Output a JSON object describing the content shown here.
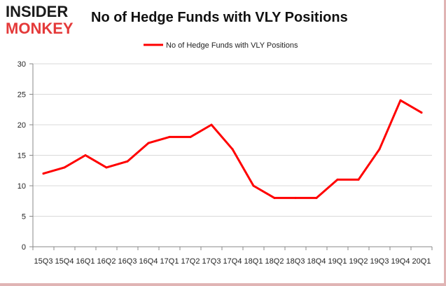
{
  "logo": {
    "line1": "INSIDER",
    "line2": "MONKEY"
  },
  "colors": {
    "series": "#ff0000",
    "grid": "#d9d9d9",
    "axis": "#888888",
    "logo_accent": "#e43a3a"
  },
  "chart_data": {
    "type": "line",
    "title": "No of Hedge Funds with VLY Positions",
    "xlabel": "",
    "ylabel": "",
    "categories": [
      "15Q3",
      "15Q4",
      "16Q1",
      "16Q2",
      "16Q3",
      "16Q4",
      "17Q1",
      "17Q2",
      "17Q3",
      "17Q4",
      "18Q1",
      "18Q2",
      "18Q3",
      "18Q4",
      "19Q1",
      "19Q2",
      "19Q3",
      "19Q4",
      "20Q1"
    ],
    "series": [
      {
        "name": "No of Hedge Funds with VLY Positions",
        "values": [
          12,
          13,
          15,
          13,
          14,
          17,
          18,
          18,
          20,
          16,
          10,
          8,
          8,
          8,
          11,
          11,
          16,
          24,
          22
        ]
      }
    ],
    "ylim": [
      0,
      30
    ],
    "yticks": [
      "0",
      "5",
      "10",
      "15",
      "20",
      "25",
      "30"
    ],
    "grid": true,
    "legend": "top-center"
  }
}
